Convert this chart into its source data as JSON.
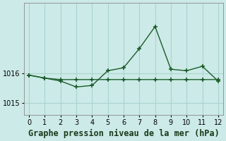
{
  "x": [
    0,
    1,
    2,
    3,
    4,
    5,
    6,
    7,
    8,
    9,
    10,
    11,
    12
  ],
  "y_line1": [
    1015.95,
    1015.85,
    1015.75,
    1015.55,
    1015.6,
    1016.1,
    1016.2,
    1016.85,
    1017.6,
    1016.15,
    1016.1,
    1016.25,
    1015.75
  ],
  "y_line2": [
    1015.95,
    1015.85,
    1015.8,
    1015.8,
    1015.8,
    1015.8,
    1015.8,
    1015.8,
    1015.8,
    1015.8,
    1015.8,
    1015.8,
    1015.8
  ],
  "title": "Graphe pression niveau de la mer (hPa)",
  "background_color": "#cceae7",
  "line_color": "#1a5c2a",
  "grid_color": "#aad4d0",
  "ylim": [
    1014.6,
    1018.4
  ],
  "yticks": [
    1015,
    1016
  ],
  "xticks": [
    0,
    1,
    2,
    3,
    4,
    5,
    6,
    7,
    8,
    9,
    10,
    11,
    12
  ],
  "marker": "+",
  "linewidth": 1.0,
  "markersize": 4,
  "markeredgewidth": 1.2,
  "title_fontsize": 8.5,
  "tick_fontsize": 7
}
